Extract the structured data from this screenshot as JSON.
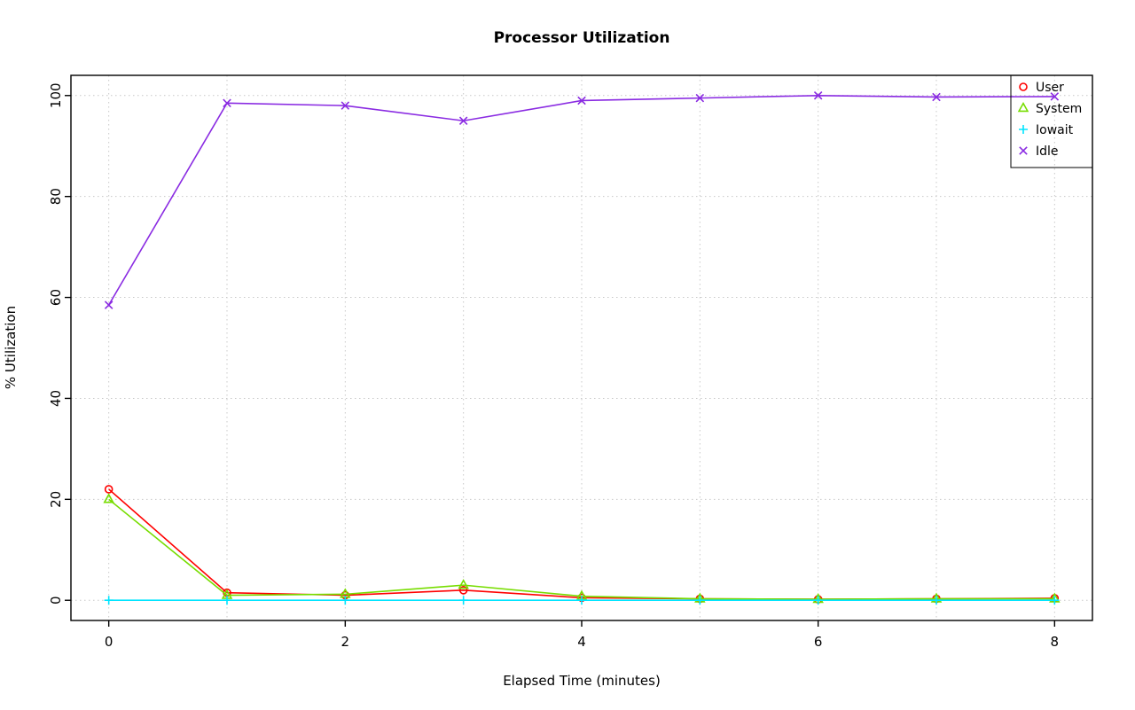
{
  "chart_data": {
    "type": "line",
    "title": "Processor Utilization",
    "xlabel": "Elapsed Time (minutes)",
    "ylabel": "% Utilization",
    "x": [
      0,
      1,
      2,
      3,
      4,
      5,
      6,
      7,
      8
    ],
    "xlim": [
      0,
      8
    ],
    "ylim": [
      0,
      100
    ],
    "x_ticks": [
      0,
      2,
      4,
      6,
      8
    ],
    "y_ticks": [
      0,
      20,
      40,
      60,
      80,
      100
    ],
    "grid_x": [
      0,
      1,
      2,
      3,
      4,
      5,
      6,
      7,
      8
    ],
    "grid_y": [
      0,
      20,
      40,
      60,
      80,
      100
    ],
    "grid": true,
    "legend_position": "top-right",
    "colors": {
      "grid": "#C8C8C8",
      "axis": "#000000",
      "background": "#FFFFFF"
    },
    "series": [
      {
        "name": "User",
        "marker": "circle",
        "color": "#FF0000",
        "values": [
          22,
          1.5,
          1,
          2,
          0.5,
          0.3,
          0.2,
          0.3,
          0.4
        ]
      },
      {
        "name": "System",
        "marker": "triangle",
        "color": "#77DD00",
        "values": [
          20,
          1,
          1.2,
          3,
          0.8,
          0.3,
          0.2,
          0.3,
          0.3
        ]
      },
      {
        "name": "Iowait",
        "marker": "plus",
        "color": "#00E5FF",
        "values": [
          0,
          0,
          0,
          0,
          0,
          0,
          0,
          0,
          0
        ]
      },
      {
        "name": "Idle",
        "marker": "x",
        "color": "#8A2BE2",
        "values": [
          58.5,
          98.5,
          98,
          95,
          99,
          99.5,
          100,
          99.7,
          99.8
        ]
      }
    ]
  }
}
